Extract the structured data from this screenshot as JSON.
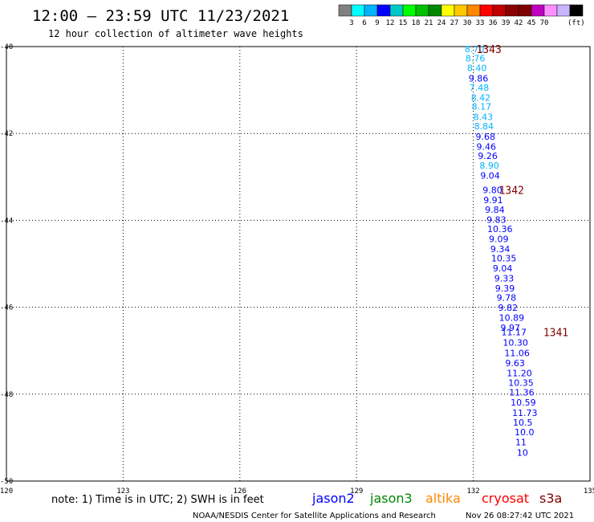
{
  "header": {
    "title": "12:00 – 23:59 UTC 11/23/2021",
    "subtitle": "12 hour collection of altimeter wave heights"
  },
  "colorbar": {
    "colors": [
      "#808080",
      "#00ffff",
      "#00b4ff",
      "#0000ff",
      "#00c8c8",
      "#00ff00",
      "#00c000",
      "#008800",
      "#ffff00",
      "#ffc800",
      "#ff8800",
      "#ff0000",
      "#c00000",
      "#8b0000",
      "#800000",
      "#c000c0",
      "#ff90ff",
      "#c8b4ff",
      "#000000"
    ],
    "labels": [
      "3",
      "6",
      "9",
      "12",
      "15",
      "18",
      "21",
      "24",
      "27",
      "30",
      "33",
      "36",
      "39",
      "42",
      "45",
      "70"
    ],
    "unit": "(ft)"
  },
  "footer": {
    "note": "note: 1) Time is in UTC; 2) SWH is in feet",
    "credit": "NOAA/NESDIS Center for Satellite Applications and Research",
    "timestamp": "Nov 26 08:27:42 UTC 2021"
  },
  "legend": [
    {
      "name": "jason2",
      "color": "#0000ff"
    },
    {
      "name": "jason3",
      "color": "#008800"
    },
    {
      "name": "altika",
      "color": "#ff8800"
    },
    {
      "name": "cryosat",
      "color": "#ff0000"
    },
    {
      "name": "s3a",
      "color": "#800000"
    }
  ],
  "chart_data": {
    "type": "scatter",
    "title": "12:00 – 23:59 UTC 11/23/2021",
    "subtitle": "12 hour collection of altimeter wave heights",
    "xlim": [
      120,
      135
    ],
    "ylim": [
      -50,
      -40
    ],
    "x_ticks": [
      "120",
      "123",
      "126",
      "129",
      "132",
      "135"
    ],
    "y_ticks": [
      "-40",
      "-42",
      "-44",
      "-46",
      "-48",
      "-50"
    ],
    "grid": true,
    "units": "ft",
    "points": [
      {
        "lon": 131.78,
        "lat": -40.06,
        "label": "8.70",
        "color": "#00b4ff"
      },
      {
        "lon": 131.8,
        "lat": -40.27,
        "label": "8.76",
        "color": "#00b4ff"
      },
      {
        "lon": 131.84,
        "lat": -40.49,
        "label": "8.40",
        "color": "#00b4ff"
      },
      {
        "lon": 131.88,
        "lat": -40.73,
        "label": "9.86",
        "color": "#0000ff"
      },
      {
        "lon": 131.9,
        "lat": -40.94,
        "label": "7.48",
        "color": "#00b4ff"
      },
      {
        "lon": 131.94,
        "lat": -41.17,
        "label": "8.42",
        "color": "#00b4ff"
      },
      {
        "lon": 131.96,
        "lat": -41.38,
        "label": "8.17",
        "color": "#00b4ff"
      },
      {
        "lon": 132.0,
        "lat": -41.62,
        "label": "8.43",
        "color": "#00b4ff"
      },
      {
        "lon": 132.02,
        "lat": -41.83,
        "label": "8.84",
        "color": "#00b4ff"
      },
      {
        "lon": 132.06,
        "lat": -42.07,
        "label": "9.68",
        "color": "#0000ff"
      },
      {
        "lon": 132.08,
        "lat": -42.3,
        "label": "9.46",
        "color": "#0000ff"
      },
      {
        "lon": 132.12,
        "lat": -42.51,
        "label": "9.26",
        "color": "#0000ff"
      },
      {
        "lon": 132.16,
        "lat": -42.74,
        "label": "8.90",
        "color": "#00b4ff"
      },
      {
        "lon": 132.18,
        "lat": -42.97,
        "label": "9.04",
        "color": "#0000ff"
      },
      {
        "lon": 132.24,
        "lat": -43.3,
        "label": "9.80",
        "color": "#0000ff"
      },
      {
        "lon": 132.26,
        "lat": -43.53,
        "label": "9.91",
        "color": "#0000ff"
      },
      {
        "lon": 132.3,
        "lat": -43.75,
        "label": "9.84",
        "color": "#0000ff"
      },
      {
        "lon": 132.34,
        "lat": -43.98,
        "label": "9.83",
        "color": "#0000ff"
      },
      {
        "lon": 132.36,
        "lat": -44.2,
        "label": "10.36",
        "color": "#0000ff"
      },
      {
        "lon": 132.4,
        "lat": -44.43,
        "label": "9.09",
        "color": "#0000ff"
      },
      {
        "lon": 132.44,
        "lat": -44.66,
        "label": "9.34",
        "color": "#0000ff"
      },
      {
        "lon": 132.46,
        "lat": -44.87,
        "label": "10.35",
        "color": "#0000ff"
      },
      {
        "lon": 132.5,
        "lat": -45.1,
        "label": "9.04",
        "color": "#0000ff"
      },
      {
        "lon": 132.54,
        "lat": -45.33,
        "label": "9.33",
        "color": "#0000ff"
      },
      {
        "lon": 132.56,
        "lat": -45.56,
        "label": "9.39",
        "color": "#0000ff"
      },
      {
        "lon": 132.6,
        "lat": -45.78,
        "label": "9.78",
        "color": "#0000ff"
      },
      {
        "lon": 132.64,
        "lat": -46.01,
        "label": "9.82",
        "color": "#0000ff"
      },
      {
        "lon": 132.66,
        "lat": -46.24,
        "label": "10.89",
        "color": "#0000ff"
      },
      {
        "lon": 132.7,
        "lat": -46.47,
        "label": "9.97",
        "color": "#0000ff"
      },
      {
        "lon": 132.72,
        "lat": -46.57,
        "label": "11.17",
        "color": "#0000ff"
      },
      {
        "lon": 132.76,
        "lat": -46.81,
        "label": "10.30",
        "color": "#0000ff"
      },
      {
        "lon": 132.8,
        "lat": -47.05,
        "label": "11.06",
        "color": "#0000ff"
      },
      {
        "lon": 132.82,
        "lat": -47.28,
        "label": "9.63",
        "color": "#0000ff"
      },
      {
        "lon": 132.86,
        "lat": -47.51,
        "label": "11.20",
        "color": "#0000ff"
      },
      {
        "lon": 132.9,
        "lat": -47.74,
        "label": "10.35",
        "color": "#0000ff"
      },
      {
        "lon": 132.92,
        "lat": -47.96,
        "label": "11.36",
        "color": "#0000ff"
      },
      {
        "lon": 132.96,
        "lat": -48.19,
        "label": "10.59",
        "color": "#0000ff"
      },
      {
        "lon": 133.0,
        "lat": -48.43,
        "label": "11.73",
        "color": "#0000ff"
      },
      {
        "lon": 133.02,
        "lat": -48.65,
        "label": "10.5",
        "color": "#0000ff"
      },
      {
        "lon": 133.06,
        "lat": -48.87,
        "label": "10.0",
        "color": "#0000ff"
      },
      {
        "lon": 133.08,
        "lat": -49.1,
        "label": "11",
        "color": "#0000ff"
      },
      {
        "lon": 133.12,
        "lat": -49.34,
        "label": "10",
        "color": "#0000ff"
      }
    ],
    "pass_labels": [
      {
        "lon": 132.08,
        "lat": -40.06,
        "label": "1343",
        "color": "#800000"
      },
      {
        "lon": 132.66,
        "lat": -43.3,
        "label": "1342",
        "color": "#800000"
      },
      {
        "lon": 133.8,
        "lat": -46.57,
        "label": "1341",
        "color": "#800000"
      }
    ]
  }
}
